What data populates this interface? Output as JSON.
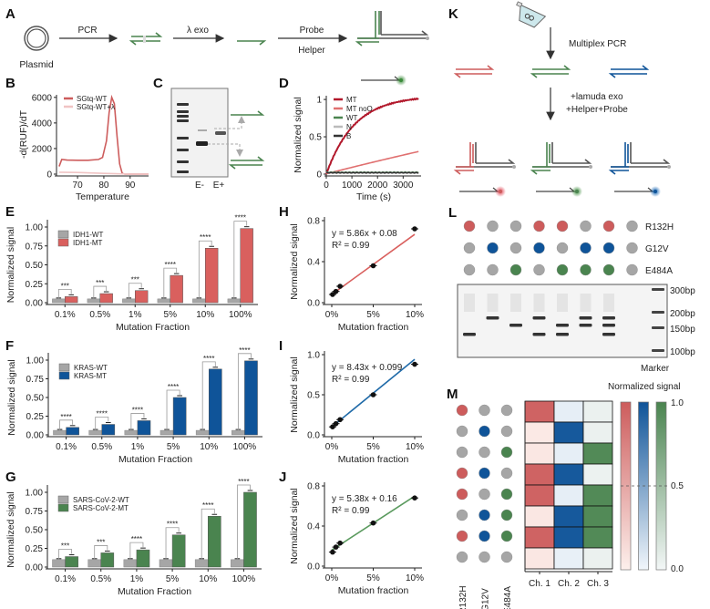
{
  "panel_letters": {
    "A": "A",
    "B": "B",
    "C": "C",
    "D": "D",
    "E": "E",
    "F": "F",
    "G": "G",
    "H": "H",
    "I": "I",
    "J": "J",
    "K": "K",
    "L": "L",
    "M": "M"
  },
  "panel_a": {
    "plasmid": "Plasmid",
    "pcr": "PCR",
    "exo": "λ exo",
    "probe": "Probe",
    "helper": "Helper"
  },
  "panel_c": {
    "lane_minus": "E-",
    "lane_plus": "E+"
  },
  "panel_k": {
    "step1": "Multiplex PCR",
    "step2a": "+lamuda exo",
    "step2b": "+Helper+Probe"
  },
  "panel_l": {
    "mutations": [
      "R132H",
      "G12V",
      "E484A"
    ],
    "lanes": [
      {
        "R132H": 1,
        "G12V": 0,
        "E484A": 0
      },
      {
        "R132H": 0,
        "G12V": 1,
        "E484A": 0
      },
      {
        "R132H": 0,
        "G12V": 0,
        "E484A": 1
      },
      {
        "R132H": 1,
        "G12V": 1,
        "E484A": 0
      },
      {
        "R132H": 1,
        "G12V": 0,
        "E484A": 1
      },
      {
        "R132H": 0,
        "G12V": 1,
        "E484A": 1
      },
      {
        "R132H": 1,
        "G12V": 1,
        "E484A": 1
      },
      {
        "R132H": 0,
        "G12V": 0,
        "E484A": 0
      }
    ],
    "size_labels": [
      "300bp",
      "200bp",
      "150bp",
      "100bp"
    ],
    "marker_label": "Marker"
  },
  "colors": {
    "red": "#cd5c5c",
    "blue": "#0f5499",
    "green": "#4a844f",
    "grey": "#a6a6a6",
    "dark": "#444444"
  },
  "chart_data": [
    {
      "id": "B",
      "type": "line",
      "xlabel": "Temperature",
      "ylabel": "-d(RUF)/dT",
      "xlim": [
        62,
        97
      ],
      "ylim": [
        0,
        6200
      ],
      "xticks": [
        70,
        80,
        90
      ],
      "yticks": [
        0,
        2000,
        4000,
        6000
      ],
      "legend": "top-left",
      "series": [
        {
          "name": "SGtq-WT",
          "color": "#cd5c5c",
          "x": [
            63,
            64,
            66,
            70,
            74,
            78,
            79.5,
            81,
            82,
            83,
            84,
            85,
            86,
            87,
            88,
            92,
            97
          ],
          "y": [
            600,
            1150,
            1100,
            1080,
            1080,
            1150,
            1300,
            2600,
            4800,
            6000,
            5500,
            3000,
            800,
            50,
            0,
            0,
            0
          ]
        },
        {
          "name": "SGtq-WT+λ",
          "color": "#f0c4c4",
          "x": [
            63,
            70,
            80,
            90,
            97
          ],
          "y": [
            150,
            130,
            60,
            0,
            0
          ]
        }
      ]
    },
    {
      "id": "D",
      "type": "line",
      "xlabel": "Time (s)",
      "ylabel": "Normalized signal",
      "xlim": [
        0,
        3700
      ],
      "ylim": [
        0,
        1.05
      ],
      "xticks": [
        0,
        1000,
        2000,
        3000
      ],
      "yticks": [
        0.0,
        0.5,
        1.0
      ],
      "legend": "top-left",
      "series": [
        {
          "name": "MT",
          "color": "#b2182b",
          "model": "exp",
          "a": 1.05,
          "tau": 1100
        },
        {
          "name": "MT noO",
          "color": "#e07070",
          "model": "lin",
          "slope": 8.7e-05,
          "curv": -1.2e-09
        },
        {
          "name": "WT",
          "color": "#4a844f",
          "model": "flat",
          "v": 0.025
        },
        {
          "name": "N",
          "color": "#bbbbbb",
          "model": "flat",
          "v": 0.02
        },
        {
          "name": "B",
          "color": "#333333",
          "model": "flat",
          "v": 0.018
        }
      ]
    },
    {
      "id": "E",
      "type": "bar",
      "xlabel": "Mutation Fraction",
      "ylabel": "Normalized signal",
      "ylim": [
        0,
        1.05
      ],
      "yticks": [
        "0.00",
        "0.25",
        "0.50",
        "0.75",
        "1.00"
      ],
      "categories": [
        "0.1%",
        "0.5%",
        "1%",
        "5%",
        "10%",
        "100%"
      ],
      "legend": "top-left",
      "series": [
        {
          "name": "IDH1-WT",
          "color": "#a6a6a6",
          "values": [
            0.05,
            0.05,
            0.05,
            0.05,
            0.05,
            0.05
          ]
        },
        {
          "name": "IDH1-MT",
          "color": "#d9605e",
          "values": [
            0.08,
            0.12,
            0.16,
            0.36,
            0.72,
            0.98
          ]
        }
      ],
      "significance": [
        "***",
        "***",
        "***",
        "****",
        "****",
        "****"
      ]
    },
    {
      "id": "F",
      "type": "bar",
      "xlabel": "Mutation Fraction",
      "ylabel": "Normalized signal",
      "ylim": [
        0,
        1.05
      ],
      "yticks": [
        "0.00",
        "0.25",
        "0.50",
        "0.75",
        "1.00"
      ],
      "categories": [
        "0.1%",
        "0.5%",
        "1%",
        "5%",
        "10%",
        "100%"
      ],
      "legend": "top-left",
      "series": [
        {
          "name": "KRAS-WT",
          "color": "#a6a6a6",
          "values": [
            0.06,
            0.06,
            0.06,
            0.06,
            0.06,
            0.06
          ]
        },
        {
          "name": "KRAS-MT",
          "color": "#0f5499",
          "values": [
            0.1,
            0.14,
            0.19,
            0.5,
            0.88,
            0.99
          ]
        }
      ],
      "significance": [
        "****",
        "****",
        "****",
        "****",
        "****",
        "****"
      ]
    },
    {
      "id": "G",
      "type": "bar",
      "xlabel": "Mutation Fraction",
      "ylabel": "Normalized signal",
      "ylim": [
        0,
        1.05
      ],
      "yticks": [
        "0.00",
        "0.25",
        "0.50",
        "0.75",
        "1.00"
      ],
      "categories": [
        "0.1%",
        "0.5%",
        "1%",
        "5%",
        "10%",
        "100%"
      ],
      "legend": "top-left",
      "series": [
        {
          "name": "SARS-CoV-2-WT",
          "color": "#a6a6a6",
          "values": [
            0.1,
            0.1,
            0.1,
            0.1,
            0.1,
            0.1
          ]
        },
        {
          "name": "SARS-CoV-2-MT",
          "color": "#4a844f",
          "values": [
            0.14,
            0.19,
            0.23,
            0.43,
            0.68,
            1.0
          ]
        }
      ],
      "significance": [
        "***",
        "***",
        "****",
        "****",
        "****",
        "****"
      ]
    },
    {
      "id": "H",
      "type": "scatter",
      "xlabel": "Mutation fraction",
      "ylabel": "Normalized signal",
      "xlim": [
        0,
        10
      ],
      "ylim": [
        0,
        0.8
      ],
      "xticks": [
        "0%",
        "5%",
        "10%"
      ],
      "yticks": [
        "0.0",
        "0.4",
        "0.8"
      ],
      "x": [
        0.1,
        0.5,
        1,
        5,
        10
      ],
      "y": [
        0.08,
        0.11,
        0.16,
        0.36,
        0.72
      ],
      "fit": {
        "slope": 0.0586,
        "intercept": 0.08,
        "color": "#d9605e"
      },
      "equation": "y = 5.86x + 0.08",
      "r2": "R² = 0.99"
    },
    {
      "id": "I",
      "type": "scatter",
      "xlabel": "Mutation fraction",
      "ylabel": "Normalized signal",
      "xlim": [
        0,
        10
      ],
      "ylim": [
        0,
        1.0
      ],
      "xticks": [
        "0%",
        "5%",
        "10%"
      ],
      "yticks": [
        "0.0",
        "0.5",
        "1.0"
      ],
      "x": [
        0.1,
        0.5,
        1,
        5,
        10
      ],
      "y": [
        0.1,
        0.14,
        0.19,
        0.5,
        0.88
      ],
      "fit": {
        "slope": 0.0843,
        "intercept": 0.099,
        "color": "#1f6aa8"
      },
      "equation": "y = 8.43x + 0.099",
      "r2": "R² = 0.99"
    },
    {
      "id": "J",
      "type": "scatter",
      "xlabel": "Mutation fraction",
      "ylabel": "Normalized signal",
      "xlim": [
        0,
        10
      ],
      "ylim": [
        0,
        0.8
      ],
      "xticks": [
        "0%",
        "5%",
        "10%"
      ],
      "yticks": [
        "0.0",
        "0.4",
        "0.8"
      ],
      "x": [
        0.1,
        0.5,
        1,
        5,
        10
      ],
      "y": [
        0.14,
        0.19,
        0.23,
        0.43,
        0.68
      ],
      "fit": {
        "slope": 0.0538,
        "intercept": 0.16,
        "color": "#5a9a5e"
      },
      "equation": "y = 5.38x + 0.16",
      "r2": "R² = 0.99"
    },
    {
      "id": "M",
      "type": "heatmap",
      "title": "Normalized signal",
      "columns": [
        "Ch. 1",
        "Ch. 2",
        "Ch. 3"
      ],
      "row_labels": [
        "R132H",
        "G12V",
        "E484A"
      ],
      "scale_ticks": [
        "0.0",
        "0.5",
        "1.0"
      ],
      "rows": [
        {
          "mut": [
            1,
            0,
            0
          ],
          "values": [
            0.95,
            0.05,
            0.05
          ]
        },
        {
          "mut": [
            0,
            1,
            0
          ],
          "values": [
            0.05,
            0.97,
            0.05
          ]
        },
        {
          "mut": [
            0,
            0,
            1
          ],
          "values": [
            0.06,
            0.05,
            0.95
          ]
        },
        {
          "mut": [
            1,
            1,
            0
          ],
          "values": [
            0.95,
            0.97,
            0.04
          ]
        },
        {
          "mut": [
            1,
            0,
            1
          ],
          "values": [
            0.95,
            0.05,
            0.95
          ]
        },
        {
          "mut": [
            0,
            1,
            1
          ],
          "values": [
            0.06,
            0.97,
            0.95
          ]
        },
        {
          "mut": [
            1,
            1,
            1
          ],
          "values": [
            0.95,
            0.97,
            0.95
          ]
        },
        {
          "mut": [
            0,
            0,
            0
          ],
          "values": [
            0.06,
            0.04,
            0.05
          ]
        }
      ]
    }
  ]
}
